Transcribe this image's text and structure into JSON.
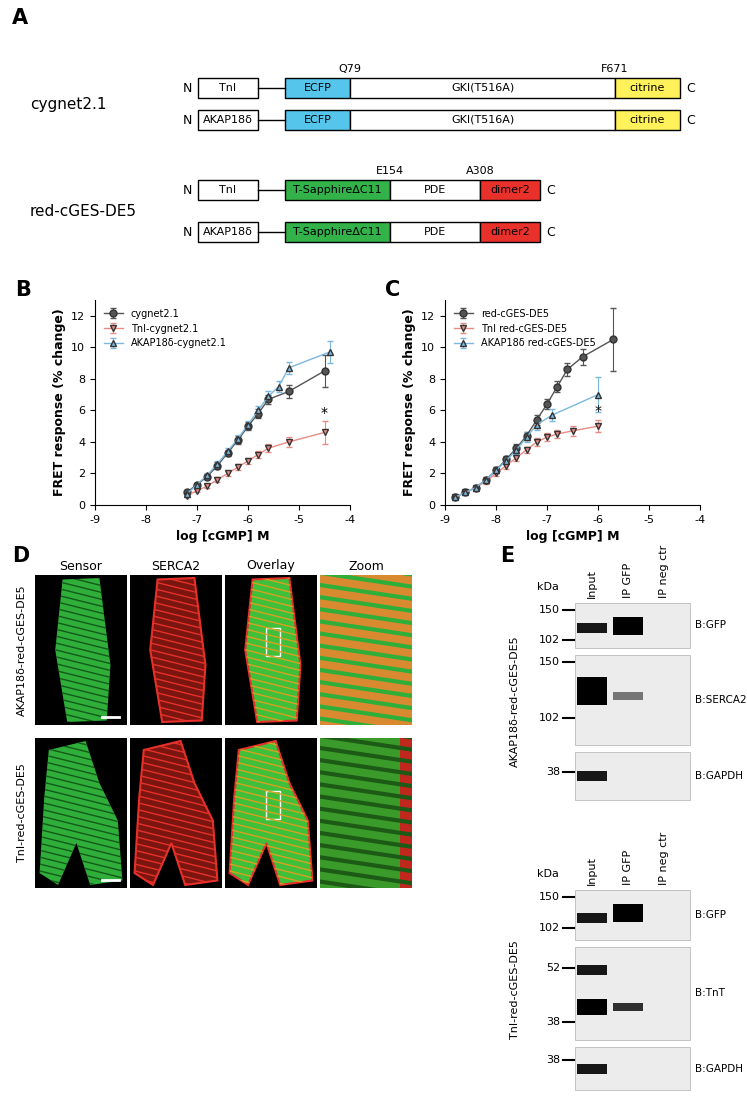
{
  "panel_A": {
    "label": "A",
    "n_term": "N",
    "c_term": "C",
    "groups": [
      {
        "name": "cygnet2.1",
        "anchors": [
          "TnI",
          "AKAP18δ"
        ],
        "domains": [
          {
            "text": "ECFP",
            "color": "#55c5ec"
          },
          {
            "text": "GKI(T516A)",
            "color": "#ffffff",
            "start_label": "Q79",
            "end_label": "F671"
          },
          {
            "text": "citrine",
            "color": "#fff15a"
          }
        ]
      },
      {
        "name": "red-cGES-DE5",
        "anchors": [
          "TnI",
          "AKAP18δ"
        ],
        "domains": [
          {
            "text": "T-SapphireΔC11",
            "color": "#33b24a"
          },
          {
            "text": "PDE",
            "color": "#ffffff",
            "start_label": "E154",
            "end_label": "A308"
          },
          {
            "text": "dimer2",
            "color": "#e8312b"
          }
        ]
      }
    ]
  },
  "chart_data": [
    {
      "type": "line",
      "title": "B",
      "xlabel": "log [cGMP] M",
      "ylabel": "FRET response (% change)",
      "xlim": [
        -9,
        -4
      ],
      "ylim": [
        0,
        13
      ],
      "xticks": [
        -9,
        -8,
        -7,
        -6,
        -5,
        -4
      ],
      "yticks": [
        0,
        2,
        4,
        6,
        8,
        10,
        12
      ],
      "legend": "upper left",
      "series": [
        {
          "name": "cygnet2.1",
          "color": "#555555",
          "marker": "circle",
          "x": [
            -7.2,
            -7.0,
            -6.8,
            -6.6,
            -6.4,
            -6.2,
            -6.0,
            -5.8,
            -5.6,
            -5.2,
            -4.5
          ],
          "values": [
            0.8,
            1.3,
            1.8,
            2.5,
            3.3,
            4.1,
            5.0,
            5.8,
            6.7,
            7.2,
            8.5
          ],
          "errors": [
            0.1,
            0.1,
            0.15,
            0.2,
            0.2,
            0.25,
            0.25,
            0.3,
            0.3,
            0.4,
            1.0
          ]
        },
        {
          "name": "TnI-cygnet2.1",
          "color": "#e98b84",
          "marker": "triangle_down",
          "x": [
            -7.2,
            -7.0,
            -6.8,
            -6.6,
            -6.4,
            -6.2,
            -6.0,
            -5.8,
            -5.6,
            -5.2,
            -4.5
          ],
          "values": [
            0.6,
            0.9,
            1.2,
            1.6,
            2.0,
            2.4,
            2.8,
            3.2,
            3.6,
            4.0,
            4.6
          ],
          "errors": [
            0.1,
            0.1,
            0.1,
            0.15,
            0.15,
            0.2,
            0.2,
            0.2,
            0.25,
            0.3,
            0.7
          ]
        },
        {
          "name": "AKAP18δ-cygnet2.1",
          "color": "#7ab8e0",
          "marker": "triangle_up",
          "x": [
            -7.2,
            -7.0,
            -6.8,
            -6.6,
            -6.4,
            -6.2,
            -6.0,
            -5.8,
            -5.6,
            -5.4,
            -5.2,
            -4.4
          ],
          "values": [
            0.7,
            1.3,
            1.9,
            2.6,
            3.4,
            4.2,
            5.1,
            6.0,
            6.9,
            7.5,
            8.7,
            9.7
          ],
          "errors": [
            0.1,
            0.1,
            0.15,
            0.2,
            0.2,
            0.25,
            0.25,
            0.3,
            0.3,
            0.35,
            0.4,
            0.7
          ]
        }
      ],
      "annotations": [
        {
          "text": "*",
          "series": "TnI-cygnet2.1"
        }
      ]
    },
    {
      "type": "line",
      "title": "C",
      "xlabel": "log [cGMP] M",
      "ylabel": "FRET response (% change)",
      "xlim": [
        -9,
        -4
      ],
      "ylim": [
        0,
        13
      ],
      "xticks": [
        -9,
        -8,
        -7,
        -6,
        -5,
        -4
      ],
      "yticks": [
        0,
        2,
        4,
        6,
        8,
        10,
        12
      ],
      "legend": "upper left",
      "series": [
        {
          "name": "red-cGES-DE5",
          "color": "#555555",
          "marker": "circle",
          "x": [
            -8.8,
            -8.6,
            -8.4,
            -8.2,
            -8.0,
            -7.8,
            -7.6,
            -7.4,
            -7.2,
            -7.0,
            -6.8,
            -6.6,
            -6.3,
            -5.7
          ],
          "values": [
            0.5,
            0.8,
            1.1,
            1.6,
            2.2,
            2.9,
            3.6,
            4.4,
            5.4,
            6.4,
            7.5,
            8.6,
            9.4,
            10.5
          ],
          "errors": [
            0.1,
            0.1,
            0.1,
            0.15,
            0.2,
            0.2,
            0.25,
            0.25,
            0.3,
            0.3,
            0.35,
            0.4,
            0.5,
            2.0
          ]
        },
        {
          "name": "TnI red-cGES-DE5",
          "color": "#e98b84",
          "marker": "triangle_down",
          "x": [
            -8.8,
            -8.6,
            -8.4,
            -8.2,
            -8.0,
            -7.8,
            -7.6,
            -7.4,
            -7.2,
            -7.0,
            -6.8,
            -6.5,
            -6.0
          ],
          "values": [
            0.5,
            0.8,
            1.1,
            1.5,
            2.0,
            2.5,
            3.0,
            3.5,
            4.0,
            4.3,
            4.5,
            4.7,
            5.0
          ],
          "errors": [
            0.1,
            0.1,
            0.1,
            0.15,
            0.15,
            0.2,
            0.2,
            0.2,
            0.25,
            0.25,
            0.25,
            0.3,
            0.4
          ]
        },
        {
          "name": "AKAP18δ red-cGES-DE5",
          "color": "#7ab8e0",
          "marker": "triangle_up",
          "x": [
            -8.8,
            -8.6,
            -8.4,
            -8.2,
            -8.0,
            -7.8,
            -7.6,
            -7.4,
            -7.2,
            -6.9,
            -6.0
          ],
          "values": [
            0.5,
            0.8,
            1.1,
            1.6,
            2.2,
            2.8,
            3.5,
            4.3,
            5.1,
            5.7,
            7.0
          ],
          "errors": [
            0.1,
            0.1,
            0.1,
            0.15,
            0.2,
            0.2,
            0.25,
            0.3,
            0.35,
            0.4,
            1.1
          ]
        }
      ],
      "annotations": [
        {
          "text": "*",
          "series": "TnI red-cGES-DE5"
        }
      ]
    }
  ],
  "panel_D": {
    "label": "D",
    "columns": [
      "Sensor",
      "SERCA2",
      "Overlay",
      "Zoom"
    ],
    "rows": [
      "AKAP18δ-red-cGES-DE5",
      "TnI-red-cGES-DE5"
    ]
  },
  "panel_E": {
    "label": "E",
    "blots": [
      {
        "name": "AKAP18δ-red-cGES-DE5",
        "unit": "kDa",
        "lanes": [
          "Input",
          "IP GFP",
          "IP neg ctr"
        ],
        "strips": [
          {
            "antibody": "B:GFP",
            "markers": [
              150,
              102
            ]
          },
          {
            "antibody": "B:SERCA2",
            "markers": [
              150,
              102
            ]
          },
          {
            "antibody": "B:GAPDH",
            "markers": [
              38
            ]
          }
        ]
      },
      {
        "name": "TnI-red-cGES-DE5",
        "unit": "kDa",
        "lanes": [
          "Input",
          "IP GFP",
          "IP neg ctr"
        ],
        "strips": [
          {
            "antibody": "B:GFP",
            "markers": [
              150,
              102
            ]
          },
          {
            "antibody": "B:TnT",
            "markers": [
              52,
              38
            ]
          },
          {
            "antibody": "B:GAPDH",
            "markers": [
              38
            ]
          }
        ]
      }
    ]
  }
}
